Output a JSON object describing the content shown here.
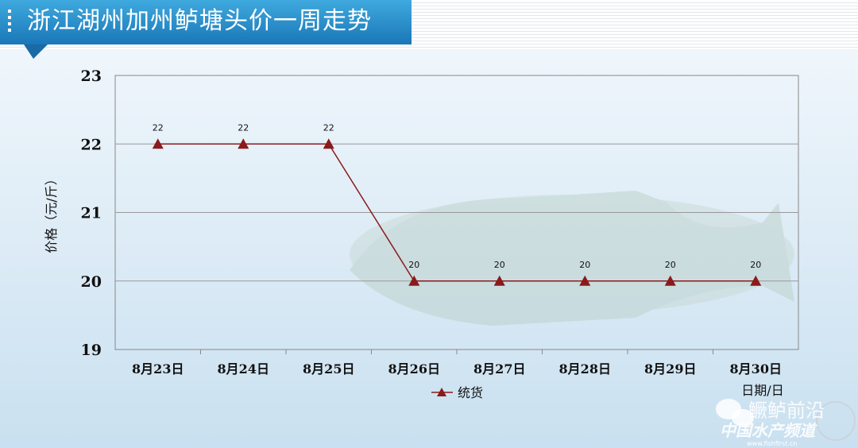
{
  "header": {
    "title": "浙江湖州加州鲈塘头价一周走势"
  },
  "chart_data": {
    "type": "line",
    "title": "浙江湖州加州鲈塘头价一周走势",
    "ylabel": "价格（元/斤）",
    "xlabel": "日期/日",
    "ylim": [
      19,
      23
    ],
    "yticks": [
      19,
      20,
      21,
      22,
      23
    ],
    "categories": [
      "8月23日",
      "8月24日",
      "8月25日",
      "8月26日",
      "8月27日",
      "8月28日",
      "8月29日",
      "8月30日"
    ],
    "series": [
      {
        "name": "统货",
        "values": [
          22,
          22,
          22,
          20,
          20,
          20,
          20,
          20
        ],
        "color": "#8b1a1a",
        "marker": "triangle"
      }
    ],
    "grid": true,
    "legend": "bottom"
  },
  "watermark": {
    "name": "鳜鲈前沿",
    "channel": "中国水产频道",
    "url": "www.fishfirst.cn"
  }
}
